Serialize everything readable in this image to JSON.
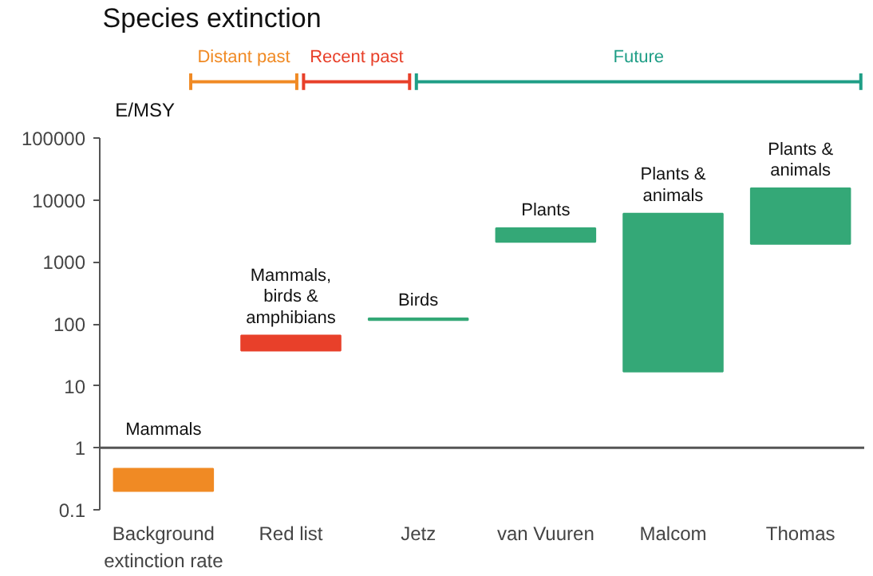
{
  "chart_data": {
    "type": "bar",
    "title": "Species extinction",
    "ylabel": "E/MSY",
    "categories": [
      "Background\nextinction rate",
      "Red list",
      "Jetz",
      "van Vuuren",
      "Malcom",
      "Thomas"
    ],
    "base": [
      0.2,
      37,
      115,
      2100,
      17,
      1950
    ],
    "values": [
      0.26,
      28,
      8,
      1400,
      6000,
      13500
    ],
    "colors": [
      "#f08a24",
      "#e8402a",
      "#34a877",
      "#34a877",
      "#34a877",
      "#34a877"
    ],
    "log": true,
    "ylim": [
      0.1,
      100000
    ],
    "yticks": [
      0.1,
      1,
      10,
      100,
      1000,
      10000,
      100000
    ],
    "grid": false,
    "ref_lines": [
      {
        "axis": "y",
        "value": 1,
        "color": "#555555"
      }
    ],
    "annotations": [
      "Distant past",
      "Recent past",
      "Future",
      "Mammals",
      "Mammals,\nbirds &\namphibians",
      "Birds",
      "Plants",
      "Plants &\nanimals",
      "Plants &\nanimals"
    ]
  }
}
